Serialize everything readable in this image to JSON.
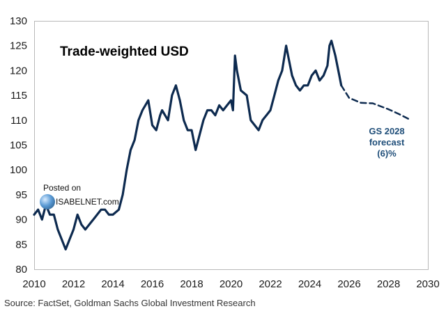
{
  "chart_data": {
    "type": "line",
    "title": "Trade-weighted USD",
    "xlim": [
      2010,
      2030
    ],
    "ylim": [
      80,
      130
    ],
    "x_ticks": [
      "2010",
      "2012",
      "2014",
      "2016",
      "2018",
      "2020",
      "2022",
      "2024",
      "2026",
      "2028",
      "2030"
    ],
    "y_ticks": [
      "80",
      "85",
      "90",
      "95",
      "100",
      "105",
      "110",
      "115",
      "120",
      "125",
      "130"
    ],
    "grid": false,
    "series": [
      {
        "line_style": "solid",
        "color": "#0d2a4f",
        "x": [
          2010.0,
          2010.2,
          2010.4,
          2010.6,
          2010.8,
          2011.0,
          2011.2,
          2011.4,
          2011.6,
          2011.8,
          2012.0,
          2012.2,
          2012.4,
          2012.6,
          2012.8,
          2013.0,
          2013.2,
          2013.4,
          2013.6,
          2013.8,
          2014.0,
          2014.3,
          2014.5,
          2014.7,
          2014.9,
          2015.1,
          2015.3,
          2015.5,
          2015.8,
          2016.0,
          2016.2,
          2016.4,
          2016.5,
          2016.8,
          2017.0,
          2017.2,
          2017.4,
          2017.6,
          2017.8,
          2018.0,
          2018.2,
          2018.4,
          2018.6,
          2018.8,
          2019.0,
          2019.2,
          2019.4,
          2019.6,
          2019.8,
          2020.0,
          2020.1,
          2020.2,
          2020.3,
          2020.5,
          2020.8,
          2021.0,
          2021.2,
          2021.4,
          2021.6,
          2021.8,
          2022.0,
          2022.2,
          2022.4,
          2022.6,
          2022.8,
          2022.9,
          2023.1,
          2023.3,
          2023.5,
          2023.7,
          2023.9,
          2024.1,
          2024.3,
          2024.5,
          2024.7,
          2024.9,
          2025.0,
          2025.1,
          2025.3,
          2025.5,
          2025.6
        ],
        "y": [
          91,
          92,
          90,
          93,
          91,
          91,
          88,
          86,
          84,
          86,
          88,
          91,
          89,
          88,
          89,
          90,
          91,
          92,
          92,
          91,
          91,
          92,
          95,
          100,
          104,
          106,
          110,
          112,
          114,
          109,
          108,
          111,
          112,
          110,
          115,
          117,
          114,
          110,
          108,
          108,
          104,
          107,
          110,
          112,
          112,
          111,
          113,
          112,
          113,
          114,
          112,
          123,
          120,
          116,
          115,
          110,
          109,
          108,
          110,
          111,
          112,
          115,
          118,
          120,
          125,
          123,
          119,
          117,
          116,
          117,
          117,
          119,
          120,
          118,
          119,
          121,
          125,
          126,
          123,
          119,
          117
        ]
      },
      {
        "name": "GS 2028 forecast (6)%",
        "line_style": "dashed",
        "color": "#0d2a4f",
        "x": [
          2025.6,
          2026.0,
          2026.6,
          2027.2,
          2028.0,
          2028.5,
          2029.0
        ],
        "y": [
          117,
          114.5,
          113.5,
          113.4,
          112.2,
          111.3,
          110.3
        ]
      }
    ],
    "annotations": [
      {
        "lines": [
          "GS 2028",
          "forecast",
          "(6)%"
        ]
      }
    ]
  },
  "watermark": {
    "line1": "Posted on",
    "line2": "ISABELNET.com"
  },
  "source": "Source: FactSet, Goldman Sachs Global Investment Research"
}
